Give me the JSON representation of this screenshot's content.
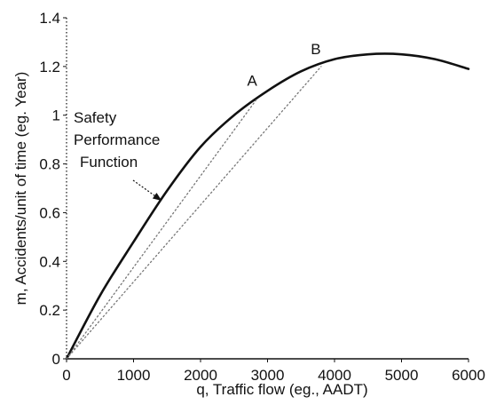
{
  "chart_data": {
    "type": "line",
    "title": "",
    "xlabel": "q, Traffic flow (eg., AADT)",
    "ylabel": "m, Accidents/unit of time (eg. Year)",
    "xlim": [
      0,
      6000
    ],
    "ylim": [
      0,
      1.4
    ],
    "x_ticks": [
      "0",
      "1000",
      "2000",
      "3000",
      "4000",
      "5000",
      "6000"
    ],
    "y_ticks": [
      "0",
      "0.2",
      "0.4",
      "0.6",
      "0.8",
      "1",
      "1.2",
      "1.4"
    ],
    "grid": false,
    "series": [
      {
        "name": "Safety Performance Function",
        "style": "solid",
        "color": "#111111",
        "x": [
          0,
          500,
          1000,
          1500,
          2000,
          2500,
          3000,
          3500,
          4000,
          4500,
          5000,
          5500,
          6000
        ],
        "y": [
          0,
          0.26,
          0.48,
          0.69,
          0.87,
          1.0,
          1.1,
          1.18,
          1.23,
          1.25,
          1.25,
          1.23,
          1.19
        ]
      },
      {
        "name": "",
        "style": "dotted",
        "color": "#777777",
        "x": [
          0,
          2850
        ],
        "y": [
          0,
          1.07
        ]
      },
      {
        "name": "",
        "style": "dotted",
        "color": "#777777",
        "x": [
          0,
          3800
        ],
        "y": [
          0,
          1.2
        ]
      }
    ],
    "points": [
      {
        "label": "A",
        "x": 2850,
        "y": 1.07
      },
      {
        "label": "B",
        "x": 3800,
        "y": 1.2
      }
    ],
    "annotation": {
      "lines": [
        "Safety",
        "Performance",
        "Function"
      ],
      "arrow_to": {
        "x": 1450,
        "y": 0.64
      }
    }
  }
}
